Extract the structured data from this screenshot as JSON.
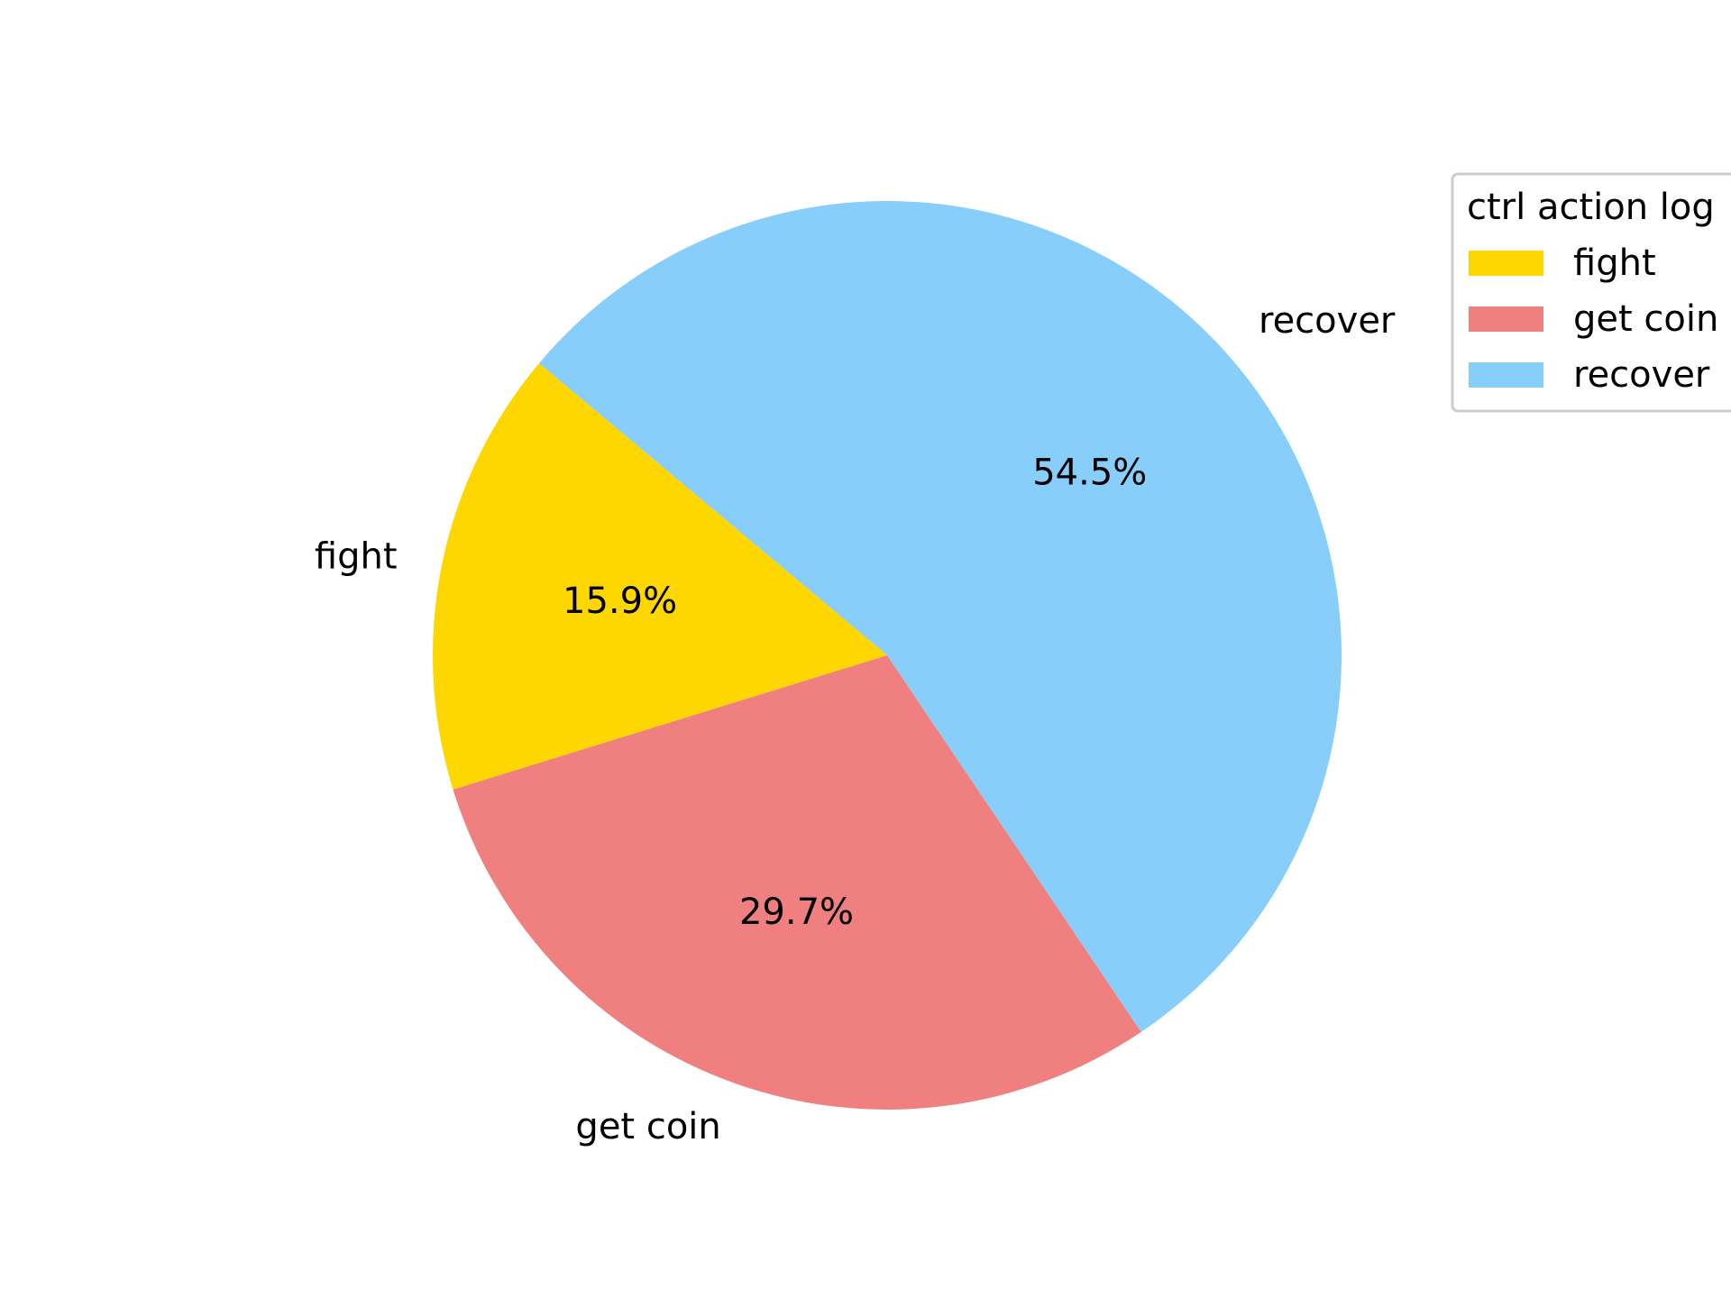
{
  "chart_data": {
    "type": "pie",
    "title": "",
    "categories": [
      "fight",
      "get coin",
      "recover"
    ],
    "values": [
      15.9,
      29.7,
      54.5
    ],
    "percent_labels": [
      "15.9%",
      "29.7%",
      "54.5%"
    ],
    "colors": [
      "#FFD700",
      "#F08080",
      "#87CEFA"
    ],
    "start_angle_deg": 140,
    "direction": "counterclockwise",
    "legend": {
      "title": "ctrl action log",
      "placement": "upper right",
      "entries": [
        "fight",
        "get coin",
        "recover"
      ]
    }
  }
}
